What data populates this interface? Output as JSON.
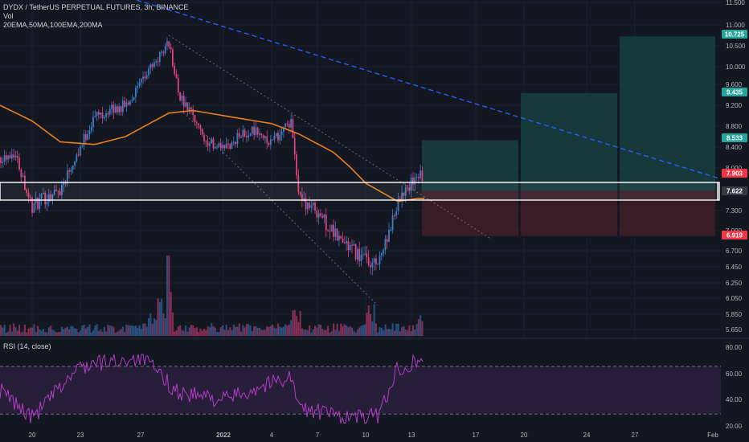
{
  "header": {
    "symbol_line": "DYDX / TetherUS PERPETUAL FUTURES, 3h, BINANCE",
    "volume_label": "Vol",
    "ma_label": "20EMA,50MA,100EMA,200MA"
  },
  "rsi": {
    "label": "RSI (14, close)",
    "ticks": [
      "80.00",
      "60.00",
      "40.00",
      "20.00"
    ]
  },
  "price_axis": {
    "ticks": [
      "11.500",
      "11.000",
      "10.500",
      "10.000",
      "9.600",
      "9.200",
      "8.800",
      "8.400",
      "8.000",
      "7.300",
      "7.000",
      "6.700",
      "6.450",
      "6.250",
      "6.050",
      "5.850",
      "5.650"
    ]
  },
  "badges": [
    {
      "text": "10.725",
      "color": "#26a69a"
    },
    {
      "text": "9.435",
      "color": "#26a69a"
    },
    {
      "text": "8.533",
      "color": "#26a69a"
    },
    {
      "text": "7.903",
      "color": "#f23645"
    },
    {
      "text": "7.622",
      "color": "#363a45"
    },
    {
      "text": "6.919",
      "color": "#f23645"
    }
  ],
  "time_axis": {
    "labels": [
      "20",
      "23",
      "27",
      "2022",
      "4",
      "7",
      "10",
      "13",
      "17",
      "20",
      "24",
      "27",
      "Feb"
    ]
  },
  "colors": {
    "up": "#3d7fc7",
    "down": "#e0417a",
    "ema": "#e8801e",
    "trendline": "#2962ff",
    "rsi_line": "#b33dc6",
    "profit_zone": "#17403f",
    "loss_zone": "#3d1e27"
  },
  "chart_data": {
    "type": "candlestick",
    "title": "DYDX / TetherUS PERPETUAL FUTURES, 3h, BINANCE",
    "interval": "3h",
    "x_labels": [
      "20",
      "23",
      "27",
      "2022",
      "4",
      "7",
      "10",
      "13",
      "17",
      "20",
      "24",
      "27",
      "Feb"
    ],
    "price_anchors": [
      [
        "Dec 18",
        8.2
      ],
      [
        "Dec 19",
        8.3
      ],
      [
        "Dec 20",
        7.35
      ],
      [
        "Dec 21",
        7.5
      ],
      [
        "Dec 22",
        7.65
      ],
      [
        "Dec 23",
        8.4
      ],
      [
        "Dec 24",
        9.0
      ],
      [
        "Dec 25",
        9.1
      ],
      [
        "Dec 26",
        9.2
      ],
      [
        "Dec 27",
        9.6
      ],
      [
        "Dec 28",
        10.6
      ],
      [
        "Dec 29",
        9.4
      ],
      [
        "Dec 30",
        9.0
      ],
      [
        "Dec 31",
        8.5
      ],
      [
        "Jan 1",
        8.35
      ],
      [
        "Jan 2",
        8.6
      ],
      [
        "Jan 3",
        8.75
      ],
      [
        "Jan 4",
        8.5
      ],
      [
        "Jan 5",
        8.85
      ],
      [
        "Jan 6",
        7.5
      ],
      [
        "Jan 7",
        7.3
      ],
      [
        "Jan 8",
        6.95
      ],
      [
        "Jan 9",
        6.75
      ],
      [
        "Jan 10",
        6.55
      ],
      [
        "Jan 11",
        6.5
      ],
      [
        "Jan 12",
        7.4
      ],
      [
        "Jan 13",
        7.95
      ],
      [
        "Jan 13 late",
        7.75
      ]
    ],
    "ema_anchors": [
      [
        "Dec 18",
        9.2
      ],
      [
        "Dec 20",
        8.9
      ],
      [
        "Dec 22",
        8.5
      ],
      [
        "Dec 24",
        8.45
      ],
      [
        "Dec 26",
        8.6
      ],
      [
        "Dec 28",
        9.05
      ],
      [
        "Dec 30",
        9.1
      ],
      [
        "Jan 2",
        8.95
      ],
      [
        "Jan 4",
        8.85
      ],
      [
        "Jan 6",
        8.65
      ],
      [
        "Jan 8",
        8.3
      ],
      [
        "Jan 10",
        7.75
      ],
      [
        "Jan 12",
        7.45
      ],
      [
        "Jan 13",
        7.5
      ]
    ],
    "position": {
      "entry_zone": [
        7.622,
        7.903
      ],
      "stop": 6.919,
      "targets": [
        8.533,
        9.435,
        10.725
      ]
    },
    "rsi_anchors": [
      [
        "Dec 18",
        50
      ],
      [
        "Dec 20",
        27
      ],
      [
        "Dec 23",
        70
      ],
      [
        "Dec 27",
        78
      ],
      [
        "Dec 29",
        48
      ],
      [
        "Jan 1",
        42
      ],
      [
        "Jan 5",
        62
      ],
      [
        "Jan 6",
        35
      ],
      [
        "Jan 9",
        27
      ],
      [
        "Jan 11",
        28
      ],
      [
        "Jan 12",
        68
      ],
      [
        "Jan 13",
        75
      ]
    ],
    "rsi_levels": [
      70,
      30
    ],
    "yrange_price": [
      5.6,
      11.6
    ],
    "yrange_rsi": [
      20,
      85
    ]
  }
}
